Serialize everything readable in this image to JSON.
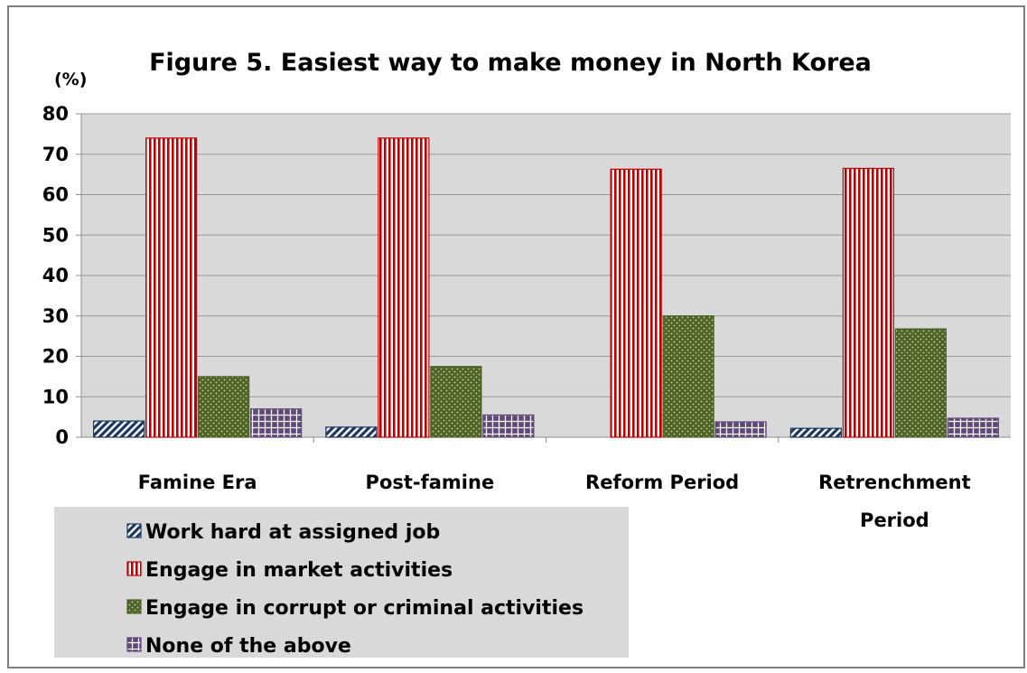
{
  "chart_data": {
    "type": "bar",
    "title": "Figure 5.  Easiest way to make money in North Korea",
    "ylabel": "(%)",
    "xlabel": "",
    "ylim": [
      0,
      80
    ],
    "yticks": [
      0,
      10,
      20,
      30,
      40,
      50,
      60,
      70,
      80
    ],
    "grid": true,
    "legend_position": "bottom-left",
    "categories": [
      "Famine Era",
      "Post-famine",
      "Reform Period",
      "Retrenchment Period"
    ],
    "series": [
      {
        "name": "Work hard at assigned job",
        "values": [
          4,
          2.5,
          0,
          2.2
        ],
        "color": "#1f3864",
        "pattern": "diagonal"
      },
      {
        "name": "Engage in market activities",
        "values": [
          74,
          74,
          66.3,
          66.5
        ],
        "color": "#c00000",
        "pattern": "vertical"
      },
      {
        "name": "Engage in corrupt or criminal activities",
        "values": [
          15,
          17.5,
          30,
          26.8
        ],
        "color": "#4f6228",
        "pattern": "dots"
      },
      {
        "name": "None of the above",
        "values": [
          7,
          5.5,
          3.8,
          4.7
        ],
        "color": "#5f497a",
        "pattern": "grid"
      }
    ]
  }
}
